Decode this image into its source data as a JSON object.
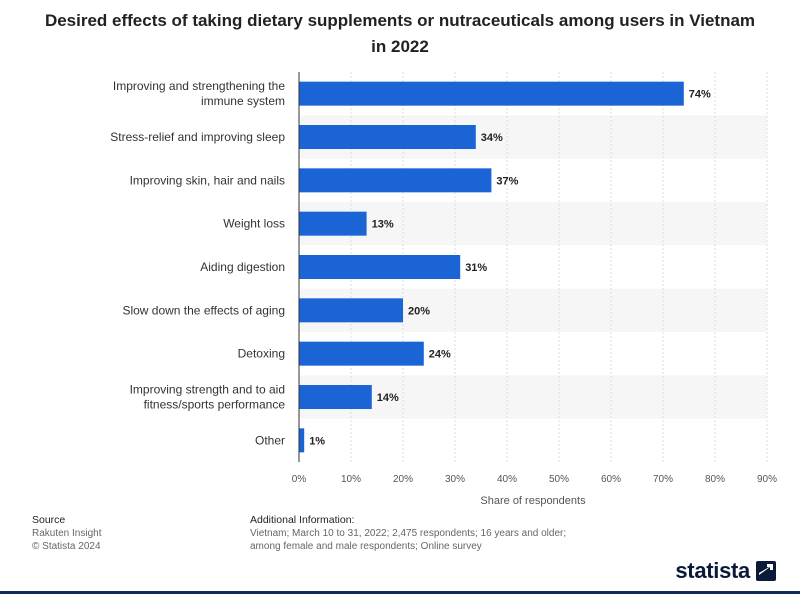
{
  "header": {
    "title": "Desired effects of taking dietary supplements or nutraceuticals among users in Vietnam in 2022"
  },
  "chart_data": {
    "type": "bar",
    "orientation": "horizontal",
    "categories": [
      "Improving and strengthening the immune system",
      "Stress-relief and improving sleep",
      "Improving skin, hair and nails",
      "Weight loss",
      "Aiding digestion",
      "Slow down the effects of aging",
      "Detoxing",
      "Improving strength and to aid fitness/sports performance",
      "Other"
    ],
    "values": [
      74,
      34,
      37,
      13,
      31,
      20,
      24,
      14,
      1
    ],
    "value_labels": [
      "74%",
      "34%",
      "37%",
      "13%",
      "31%",
      "20%",
      "24%",
      "14%",
      "1%"
    ],
    "xlim": [
      0,
      90
    ],
    "xticks": [
      "0%",
      "10%",
      "20%",
      "30%",
      "40%",
      "50%",
      "60%",
      "70%",
      "80%",
      "90%"
    ],
    "xlabel": "Share of respondents",
    "ylabel": "",
    "grid": true,
    "bar_color": "#1a64d6"
  },
  "footer": {
    "source_heading": "Source",
    "source_lines": [
      "Rakuten Insight",
      "© Statista 2024"
    ],
    "info_heading": "Additional Information:",
    "info_lines": [
      "Vietnam; March 10 to 31, 2022; 2,475 respondents; 16 years and older;",
      "among female and male respondents; Online survey"
    ]
  },
  "brand": {
    "logo_text": "statista",
    "logo_icon": "statista-logo-icon"
  }
}
